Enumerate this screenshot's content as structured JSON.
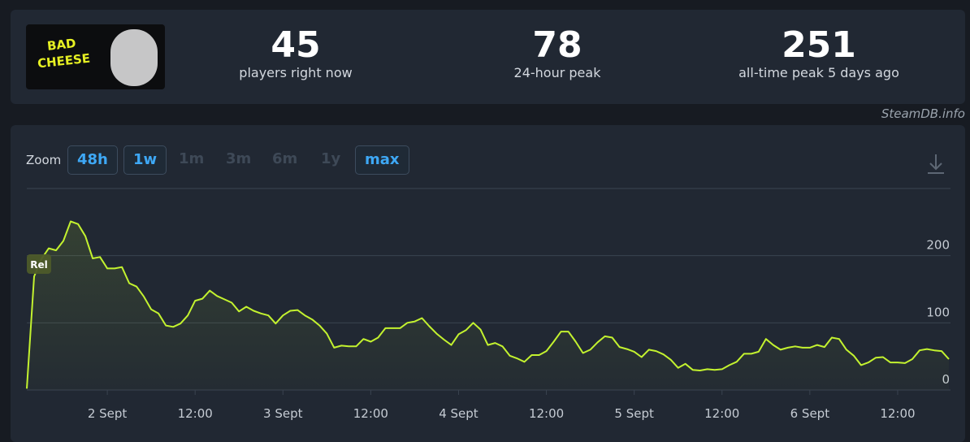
{
  "header": {
    "logo_text": [
      "BAD",
      "CHEESE"
    ],
    "stats": [
      {
        "value": "45",
        "label": "players right now"
      },
      {
        "value": "78",
        "label": "24-hour peak"
      },
      {
        "value": "251",
        "label": "all-time peak 5 days ago"
      }
    ]
  },
  "watermark": "SteamDB.info",
  "zoom": {
    "label": "Zoom",
    "buttons": [
      "48h",
      "1w",
      "1m",
      "3m",
      "6m",
      "1y",
      "max"
    ]
  },
  "chart_data": {
    "type": "line",
    "color": "#c3f22f",
    "annotation": "Rel",
    "x": [
      -11,
      -10,
      -9,
      -8,
      -7,
      -6,
      -5,
      -4,
      -3,
      -2,
      -1,
      0,
      1,
      2,
      3,
      4,
      5,
      6,
      7,
      8,
      9,
      10,
      11,
      12,
      13,
      14,
      15,
      16,
      17,
      18,
      19,
      20,
      21,
      22,
      23,
      24,
      25,
      26,
      27,
      28,
      29,
      30,
      31,
      32,
      33,
      34,
      35,
      36,
      37,
      38,
      39,
      40,
      41,
      42,
      43,
      44,
      45,
      46,
      47,
      48,
      49,
      50,
      51,
      52,
      53,
      54,
      55,
      56,
      57,
      58,
      59,
      60,
      61,
      62,
      63,
      64,
      65,
      66,
      67,
      68,
      69,
      70,
      71,
      72,
      73,
      74,
      75,
      76,
      77,
      78,
      79,
      80,
      81,
      82,
      83,
      84,
      85,
      86,
      87,
      88,
      89,
      90,
      91,
      92,
      93,
      94,
      95,
      96,
      97,
      98,
      99,
      100,
      101,
      102,
      103,
      104,
      105,
      106,
      107,
      108,
      109,
      110,
      111,
      112,
      113,
      114,
      115
    ],
    "values": [
      2,
      169,
      195,
      211,
      208,
      222,
      251,
      247,
      229,
      196,
      198,
      181,
      181,
      183,
      159,
      154,
      139,
      120,
      114,
      96,
      94,
      99,
      111,
      133,
      136,
      148,
      140,
      135,
      130,
      117,
      124,
      118,
      114,
      111,
      99,
      111,
      118,
      119,
      111,
      105,
      96,
      84,
      63,
      66,
      65,
      65,
      76,
      72,
      78,
      92,
      92,
      92,
      100,
      102,
      107,
      95,
      84,
      75,
      67,
      83,
      89,
      100,
      90,
      67,
      70,
      65,
      51,
      47,
      42,
      52,
      52,
      58,
      72,
      87,
      87,
      72,
      55,
      60,
      71,
      80,
      78,
      64,
      61,
      57,
      49,
      60,
      58,
      53,
      45,
      33,
      39,
      30,
      29,
      31,
      30,
      31,
      37,
      42,
      54,
      54,
      57,
      76,
      67,
      60,
      63,
      65,
      63,
      63,
      67,
      64,
      78,
      76,
      60,
      51,
      37,
      41,
      48,
      49,
      41,
      41,
      40,
      46,
      59,
      61,
      59,
      58,
      46
    ],
    "xlim": [
      -11,
      115
    ],
    "xticks": [
      {
        "value": 0,
        "label": "2 Sept"
      },
      {
        "value": 12,
        "label": "12:00"
      },
      {
        "value": 24,
        "label": "3 Sept"
      },
      {
        "value": 36,
        "label": "12:00"
      },
      {
        "value": 48,
        "label": "4 Sept"
      },
      {
        "value": 60,
        "label": "12:00"
      },
      {
        "value": 72,
        "label": "5 Sept"
      },
      {
        "value": 84,
        "label": "12:00"
      },
      {
        "value": 96,
        "label": "6 Sept"
      },
      {
        "value": 108,
        "label": "12:00"
      }
    ],
    "ylim": [
      0,
      300
    ],
    "yticks": [
      0,
      100,
      200
    ],
    "grid": true
  }
}
